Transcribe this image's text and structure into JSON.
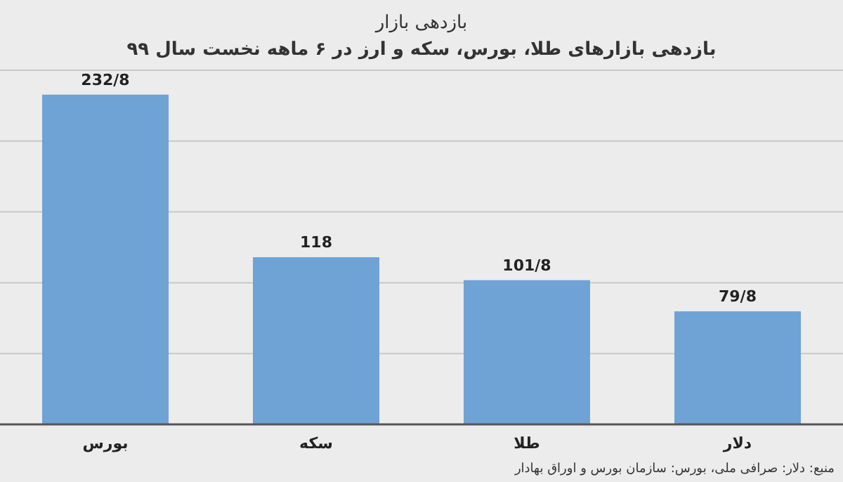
{
  "chart_data": {
    "type": "bar",
    "title": "بازدهی بازار",
    "subtitle": "بازدهی بازارهای طلا، بورس، سکه و ارز در ۶ ماهه نخست سال ۹۹",
    "categories": [
      "بورس",
      "سکه",
      "طلا",
      "دلار"
    ],
    "values": [
      232.8,
      118,
      101.8,
      79.8
    ],
    "value_labels": [
      "232/8",
      "118",
      "101/8",
      "79/8"
    ],
    "color": "#6fa3d6",
    "ylim": [
      0,
      250
    ],
    "yticks": [
      {
        "value": 0,
        "label": null
      },
      {
        "value": 50,
        "label": null
      },
      {
        "value": 100,
        "label": null
      },
      {
        "value": 150,
        "label": null
      },
      {
        "value": 200,
        "label": null
      },
      {
        "value": 250,
        "label": null
      }
    ],
    "grid": "y",
    "tick_labels": "x",
    "annotations": [
      "منبع: دلار: صرافی ملی، بورس: سازمان بورس و اوراق بهادار"
    ]
  }
}
